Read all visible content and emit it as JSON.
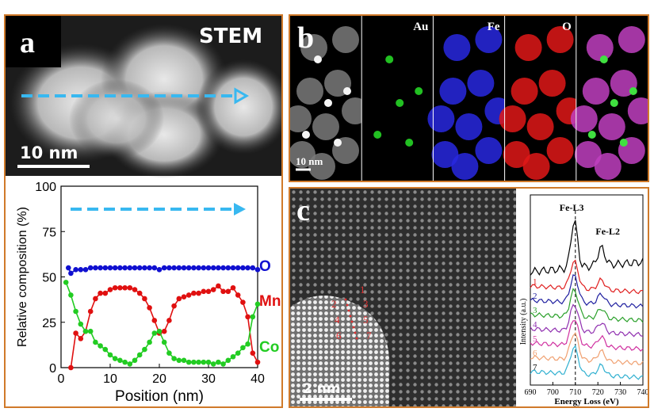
{
  "panel_a": {
    "letter": "a",
    "stem_label": "STEM",
    "scalebar_label": "10 nm",
    "chart_data": {
      "type": "line",
      "xlabel": "Position (nm)",
      "ylabel": "Relative composition (%)",
      "xlim": [
        0,
        40
      ],
      "ylim": [
        0,
        100
      ],
      "xticks": [
        "0",
        "10",
        "20",
        "30",
        "40"
      ],
      "yticks": [
        "0",
        "25",
        "50",
        "75",
        "100"
      ],
      "series": [
        {
          "name": "O",
          "color": "#1010d0",
          "x": [
            1.5,
            2,
            3,
            4,
            5,
            6,
            7,
            8,
            9,
            10,
            11,
            12,
            13,
            14,
            15,
            16,
            17,
            18,
            19,
            20,
            21,
            22,
            23,
            24,
            25,
            26,
            27,
            28,
            29,
            30,
            31,
            32,
            33,
            34,
            35,
            36,
            37,
            38,
            39,
            40
          ],
          "y": [
            55,
            52,
            54,
            54,
            54,
            55,
            55,
            55,
            55,
            55,
            55,
            55,
            55,
            55,
            55,
            55,
            55,
            55,
            55,
            54,
            55,
            55,
            55,
            55,
            55,
            55,
            55,
            55,
            55,
            55,
            55,
            55,
            55,
            55,
            55,
            55,
            55,
            55,
            55,
            54
          ]
        },
        {
          "name": "Mn",
          "color": "#e01010",
          "x": [
            2,
            3,
            4,
            5,
            6,
            7,
            8,
            9,
            10,
            11,
            12,
            13,
            14,
            15,
            16,
            17,
            18,
            19,
            20,
            21,
            22,
            23,
            24,
            25,
            26,
            27,
            28,
            29,
            30,
            31,
            32,
            33,
            34,
            35,
            36,
            37,
            38,
            39,
            40
          ],
          "y": [
            0,
            19,
            16,
            20,
            31,
            38,
            41,
            41,
            43,
            44,
            44,
            44,
            44,
            43,
            41,
            38,
            33,
            26,
            19,
            20,
            26,
            34,
            38,
            39,
            40,
            41,
            41,
            42,
            42,
            43,
            45,
            42,
            42,
            44,
            40,
            36,
            28,
            8,
            3
          ]
        },
        {
          "name": "Co",
          "color": "#22cc22",
          "x": [
            1,
            2,
            3,
            4,
            5,
            6,
            7,
            8,
            9,
            10,
            11,
            12,
            13,
            14,
            15,
            16,
            17,
            18,
            19,
            20,
            21,
            22,
            23,
            24,
            25,
            26,
            27,
            28,
            29,
            30,
            31,
            32,
            33,
            34,
            35,
            36,
            37,
            38,
            39,
            40
          ],
          "y": [
            47,
            40,
            31,
            24,
            20,
            20,
            14,
            12,
            10,
            7,
            5,
            4,
            3,
            2,
            4,
            7,
            10,
            14,
            19,
            20,
            14,
            8,
            5,
            4,
            4,
            3,
            3,
            3,
            3,
            3,
            2,
            3,
            2,
            4,
            6,
            8,
            11,
            13,
            28,
            35
          ]
        }
      ]
    }
  },
  "panel_b": {
    "letter": "b",
    "scalebar_label": "10 nm",
    "maps": [
      {
        "label": "",
        "color": "#d8d8d8"
      },
      {
        "label": "Au",
        "color": "#22c022"
      },
      {
        "label": "Fe",
        "color": "#2828e0"
      },
      {
        "label": "O",
        "color": "#e01818"
      },
      {
        "label": "",
        "color": "#c040c0"
      }
    ]
  },
  "panel_c": {
    "letter": "c",
    "scalebar_label": "2 nm",
    "point_labels": [
      "1",
      "2",
      "3",
      "4",
      "5",
      "6",
      "7"
    ],
    "chart_data": {
      "type": "line",
      "xlabel": "Energy Loss (eV)",
      "ylabel": "Intensity (a.u.)",
      "xlim": [
        690,
        740
      ],
      "xticks": [
        "690",
        "700",
        "710",
        "720",
        "730",
        "740"
      ],
      "annotations": [
        "Fe-L3",
        "Fe-L2"
      ],
      "series": [
        {
          "name": "",
          "label": "",
          "color": "#000000"
        },
        {
          "name": "1",
          "label": "1",
          "color": "#e02020"
        },
        {
          "name": "2",
          "label": "2",
          "color": "#2020a0"
        },
        {
          "name": "3",
          "label": "3",
          "color": "#2aa02a"
        },
        {
          "name": "4",
          "label": "4",
          "color": "#9030b0"
        },
        {
          "name": "5",
          "label": "5",
          "color": "#d030a0"
        },
        {
          "name": "6",
          "label": "6",
          "color": "#f0a070"
        },
        {
          "name": "7",
          "label": "7",
          "color": "#30b0d0"
        }
      ]
    }
  }
}
